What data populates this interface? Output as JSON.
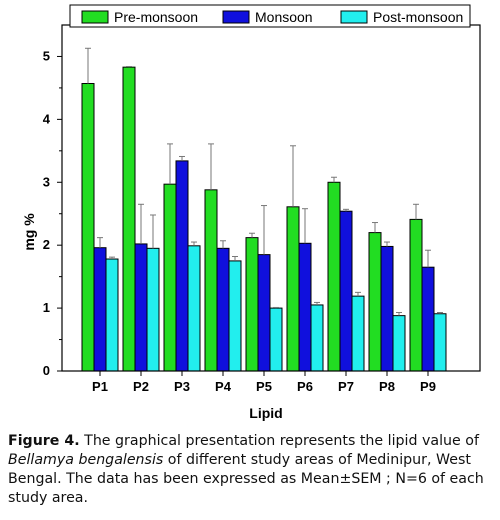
{
  "chart_data": {
    "type": "bar",
    "categories": [
      "P1",
      "P2",
      "P3",
      "P4",
      "P5",
      "P6",
      "P7",
      "P8",
      "P9"
    ],
    "series": [
      {
        "name": "Pre-monsoon",
        "color": "#22dd22",
        "values": [
          4.57,
          4.83,
          2.97,
          2.88,
          2.12,
          2.61,
          3.0,
          2.2,
          2.41
        ],
        "errors": [
          0.56,
          0.01,
          0.64,
          0.73,
          0.07,
          0.97,
          0.08,
          0.16,
          0.24
        ]
      },
      {
        "name": "Monsoon",
        "color": "#1010dd",
        "values": [
          1.96,
          2.02,
          3.34,
          1.95,
          1.85,
          2.03,
          2.54,
          1.98,
          1.65
        ],
        "errors": [
          0.16,
          0.63,
          0.07,
          0.12,
          0.78,
          0.55,
          0.03,
          0.07,
          0.27
        ]
      },
      {
        "name": "Post-monsoon",
        "color": "#22eeee",
        "values": [
          1.78,
          1.95,
          1.99,
          1.75,
          1.0,
          1.05,
          1.19,
          0.88,
          0.91
        ],
        "errors": [
          0.03,
          0.53,
          0.06,
          0.07,
          0.01,
          0.04,
          0.06,
          0.05,
          0.02
        ]
      }
    ],
    "xlabel": "Lipid",
    "ylabel": "mg %",
    "ylim": [
      0,
      5.5
    ],
    "yticks": [
      "0",
      "1",
      "2",
      "3",
      "4",
      "5"
    ],
    "grid": false,
    "legend_position": "top"
  },
  "caption": {
    "label": "Figure 4.",
    "text_before": " The graphical presentation represents the lipid value of ",
    "species": "Bellamya bengalensis",
    "text_after": " of different study areas of Medinipur, West Bengal. The data has been expressed as Mean±SEM ; N=6 of each study area."
  }
}
